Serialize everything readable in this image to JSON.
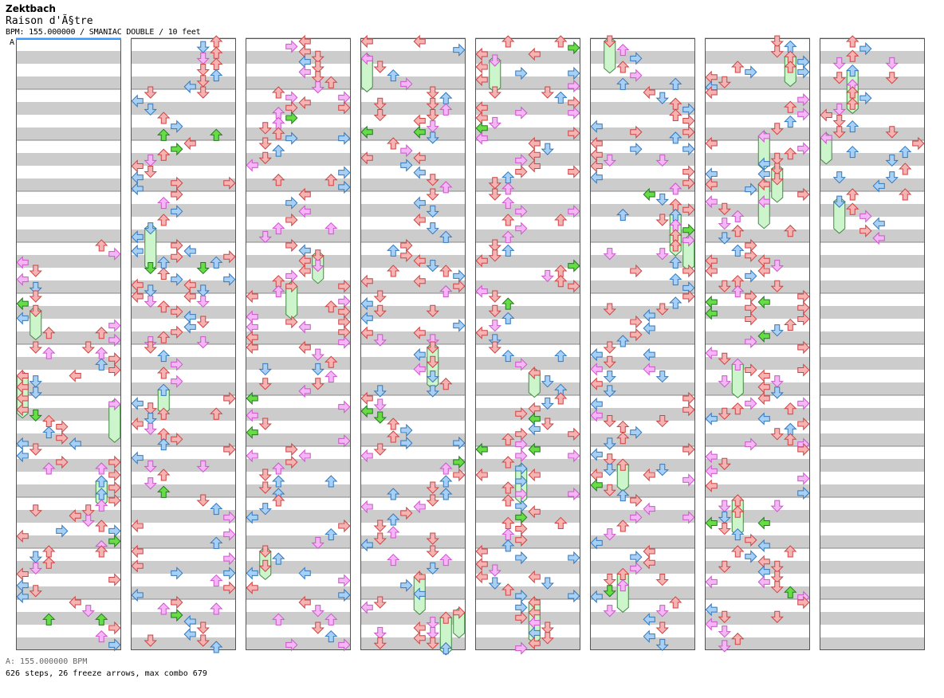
{
  "header": {
    "artist": "Zektbach",
    "title": "Raison d'Ã§tre",
    "info": "BPM: 155.000000 / SMANIAC DOUBLE / 10 feet",
    "bpm_marker": "A"
  },
  "footer": {
    "bpm_legend": "A: 155.000000 BPM",
    "stats": "626 steps, 26 freeze arrows, max combo 679"
  },
  "colors": {
    "page_background": "#ffffff",
    "band_gray": "#cccccc",
    "border": "#555555",
    "red_arrow": "#f6b3b3",
    "blue_arrow": "#a8d0f4",
    "pink_arrow": "#f4b6f4",
    "green_arrow": "#66dd44",
    "freeze_body": "#ccf5cc",
    "bpm_line": "#3399ff"
  },
  "columns": 8,
  "measures_per_column": 12,
  "note_types": [
    "red-arrow",
    "blue-arrow",
    "pink-arrow",
    "green-arrow",
    "freeze-arrow"
  ],
  "stats": {
    "steps": 626,
    "freeze_arrows": 26,
    "max_combo": 679,
    "bpm": 155
  }
}
